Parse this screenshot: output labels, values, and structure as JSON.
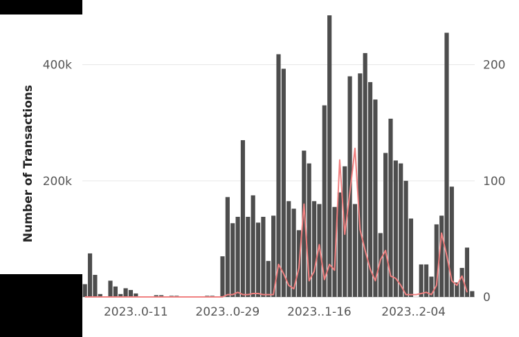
{
  "chart_data": {
    "type": "bar",
    "ylabel": "Number of Transactions",
    "y_left": {
      "ticks": [
        200000,
        400000
      ],
      "tick_labels": [
        "200k",
        "400k"
      ],
      "range": [
        0,
        490000
      ]
    },
    "y_right": {
      "ticks": [
        0,
        100,
        200
      ],
      "tick_labels": [
        "0",
        "100",
        "200"
      ],
      "range": [
        0,
        245
      ]
    },
    "x_tick_labels": [
      "2023..0-11",
      "2023..0-29",
      "2023..1-16",
      "2023..2-04"
    ],
    "grid": "horizontal",
    "colors": {
      "bars": "#4d4d4d",
      "line": "#f08080",
      "grid": "#e6e6e6",
      "ticks": "#555555"
    },
    "series": [
      {
        "kind": "bar",
        "axis": "left",
        "values": [
          22000,
          75000,
          38000,
          5000,
          0,
          28000,
          18000,
          5000,
          15000,
          12000,
          6000,
          0,
          0,
          0,
          3000,
          3000,
          0,
          2000,
          2000,
          0,
          0,
          0,
          0,
          0,
          2000,
          2000,
          0,
          70000,
          172000,
          127000,
          138000,
          270000,
          138000,
          175000,
          128000,
          138000,
          62000,
          140000,
          418000,
          393000,
          165000,
          152000,
          115000,
          252000,
          230000,
          165000,
          160000,
          330000,
          485000,
          155000,
          180000,
          225000,
          380000,
          160000,
          385000,
          420000,
          370000,
          340000,
          110000,
          248000,
          307000,
          235000,
          230000,
          200000,
          135000,
          0,
          56000,
          56000,
          35000,
          125000,
          140000,
          455000,
          190000,
          25000,
          50000,
          85000,
          10000
        ]
      },
      {
        "kind": "line",
        "axis": "right",
        "values": [
          0,
          0,
          0,
          0,
          0,
          0,
          0,
          0,
          0,
          0,
          0,
          0,
          0,
          0,
          0,
          0,
          0,
          0,
          0,
          0,
          0,
          0,
          0,
          0,
          0,
          0,
          0,
          0,
          2,
          2,
          4,
          2,
          2,
          3,
          3,
          2,
          2,
          2,
          28,
          20,
          10,
          7,
          25,
          80,
          14,
          22,
          45,
          15,
          28,
          23,
          118,
          54,
          90,
          128,
          58,
          40,
          24,
          14,
          32,
          40,
          18,
          16,
          10,
          2,
          2,
          2,
          3,
          4,
          2,
          10,
          55,
          36,
          14,
          10,
          18,
          4
        ]
      }
    ]
  }
}
